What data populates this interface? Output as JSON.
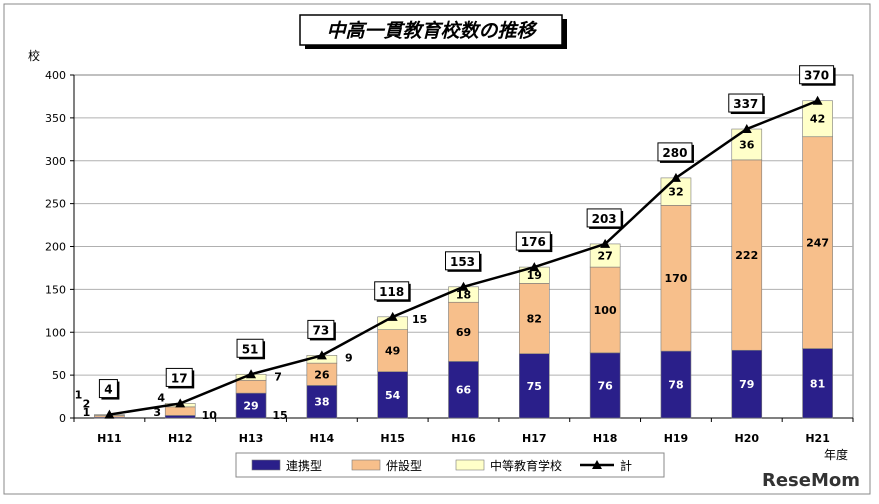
{
  "chart_data": {
    "type": "bar",
    "stacked": true,
    "title": "中高一貫教育校数の推移",
    "xlabel": "年度",
    "ylabel": "校",
    "ylim": [
      0,
      400
    ],
    "yticks": [
      0,
      50,
      100,
      150,
      200,
      250,
      300,
      350,
      400
    ],
    "grid": true,
    "legend_position": "bottom",
    "categories": [
      "H11",
      "H12",
      "H13",
      "H14",
      "H15",
      "H16",
      "H17",
      "H18",
      "H19",
      "H20",
      "H21"
    ],
    "series": [
      {
        "name": "連携型",
        "type": "bar",
        "color": "#2A1F8A",
        "values": [
          1,
          3,
          29,
          38,
          54,
          66,
          75,
          76,
          78,
          79,
          81
        ]
      },
      {
        "name": "併設型",
        "type": "bar",
        "color": "#F7BF8B",
        "values": [
          2,
          10,
          15,
          26,
          49,
          69,
          82,
          100,
          170,
          222,
          247
        ]
      },
      {
        "name": "中等教育学校",
        "type": "bar",
        "color": "#FFFFC9",
        "values": [
          1,
          4,
          7,
          9,
          15,
          18,
          19,
          27,
          32,
          36,
          42
        ]
      },
      {
        "name": "計",
        "type": "line",
        "color": "#000000",
        "values": [
          4,
          17,
          51,
          73,
          118,
          153,
          176,
          203,
          280,
          337,
          370
        ]
      }
    ]
  },
  "watermark": "ReseMom"
}
